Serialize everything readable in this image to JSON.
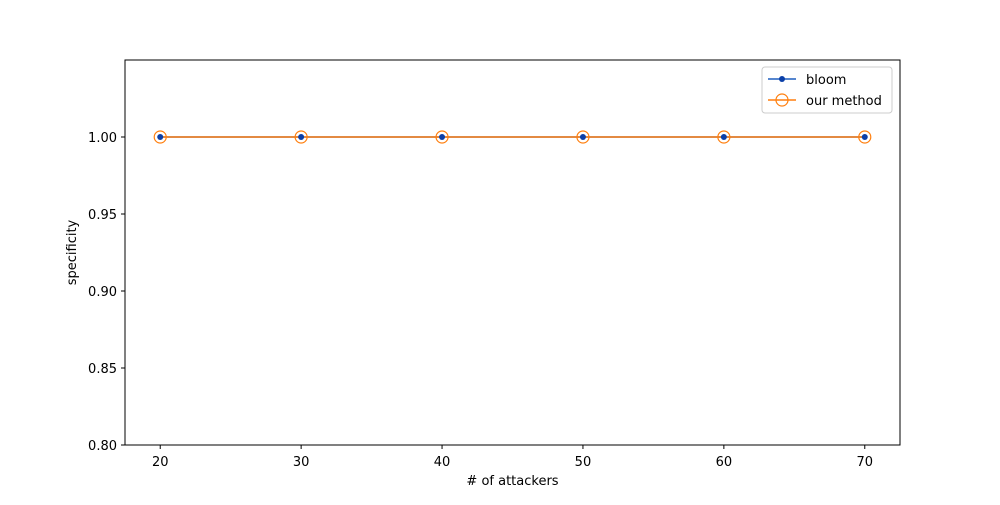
{
  "chart_data": {
    "type": "line",
    "title": "",
    "xlabel": "# of attackers",
    "ylabel": "specificity",
    "x": [
      20,
      30,
      40,
      50,
      60,
      70
    ],
    "x_ticks": [
      "20",
      "30",
      "40",
      "50",
      "60",
      "70"
    ],
    "y_ticks": [
      "0.80",
      "0.85",
      "0.90",
      "0.95",
      "1.00"
    ],
    "xlim": [
      17.5,
      72.5
    ],
    "ylim": [
      0.8,
      1.05
    ],
    "grid": false,
    "legend_position": "top-right",
    "series": [
      {
        "name": "bloom",
        "values": [
          1.0,
          1.0,
          1.0,
          1.0,
          1.0,
          1.0
        ],
        "color": "#1f5fbf",
        "marker": "dot"
      },
      {
        "name": "our method",
        "values": [
          1.0,
          1.0,
          1.0,
          1.0,
          1.0,
          1.0
        ],
        "color": "#ff7f0e",
        "marker": "open-circle"
      }
    ]
  }
}
